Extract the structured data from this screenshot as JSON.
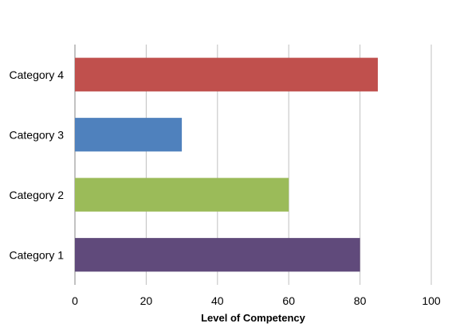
{
  "chart_data": {
    "type": "bar",
    "orientation": "horizontal",
    "categories": [
      "Category 1",
      "Category 2",
      "Category 3",
      "Category 4"
    ],
    "values": [
      80,
      60,
      30,
      85
    ],
    "colors": [
      "#604A7B",
      "#9BBB59",
      "#4F81BD",
      "#C0504D"
    ],
    "xlabel": "Level of Competency",
    "ylabel": "",
    "xlim": [
      0,
      100
    ],
    "xticks": [
      "0",
      "20",
      "40",
      "60",
      "80",
      "100"
    ],
    "grid": "vertical",
    "legend": "none"
  }
}
